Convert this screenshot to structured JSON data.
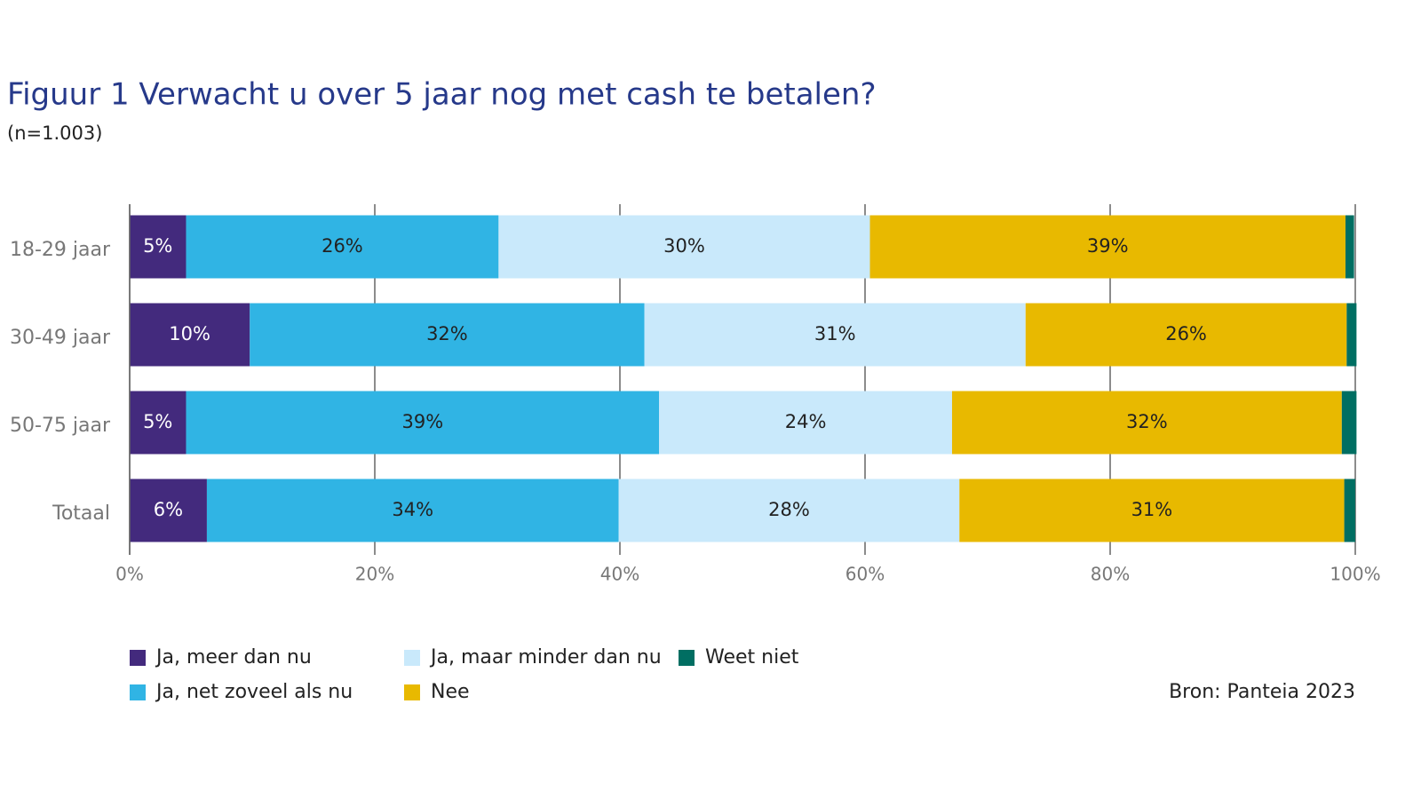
{
  "chart_data": {
    "type": "stacked-bar-horizontal",
    "title": "Figuur 1  Verwacht u over 5 jaar nog met cash te betalen?",
    "subtitle": "(n=1.003)",
    "source": "Bron: Panteia 2023",
    "categories": [
      "18-29 jaar",
      "30-49 jaar",
      "50-75 jaar",
      "Totaal"
    ],
    "series": [
      {
        "name": "Ja, meer dan nu",
        "color": "#432a7d",
        "values": [
          4.6,
          9.8,
          4.6,
          6.3
        ],
        "value_labels": [
          "5%",
          "10%",
          "5%",
          "6%"
        ]
      },
      {
        "name": "Ja, net zoveel als nu",
        "color": "#30b4e4",
        "values": [
          25.5,
          32.2,
          38.6,
          33.6
        ],
        "value_labels": [
          "26%",
          "32%",
          "39%",
          "34%"
        ]
      },
      {
        "name": "Ja, maar minder dan nu",
        "color": "#c9e9fb",
        "values": [
          30.3,
          31.1,
          23.9,
          27.8
        ],
        "value_labels": [
          "30%",
          "31%",
          "24%",
          "28%"
        ]
      },
      {
        "name": "Nee",
        "color": "#e8b900",
        "values": [
          38.8,
          26.2,
          31.8,
          31.4
        ],
        "value_labels": [
          "39%",
          "26%",
          "32%",
          "31%"
        ]
      },
      {
        "name": "Weet niet",
        "color": "#006e62",
        "values": [
          0.7,
          0.8,
          1.2,
          0.9
        ]
      }
    ],
    "xlim": [
      0,
      100
    ],
    "xticks": [
      {
        "value": 0,
        "label": "0%"
      },
      {
        "value": 20,
        "label": "20%"
      },
      {
        "value": 40,
        "label": "40%"
      },
      {
        "value": 60,
        "label": "60%"
      },
      {
        "value": 80,
        "label": "80%"
      },
      {
        "value": 100,
        "label": "100%"
      }
    ],
    "grid": true
  }
}
